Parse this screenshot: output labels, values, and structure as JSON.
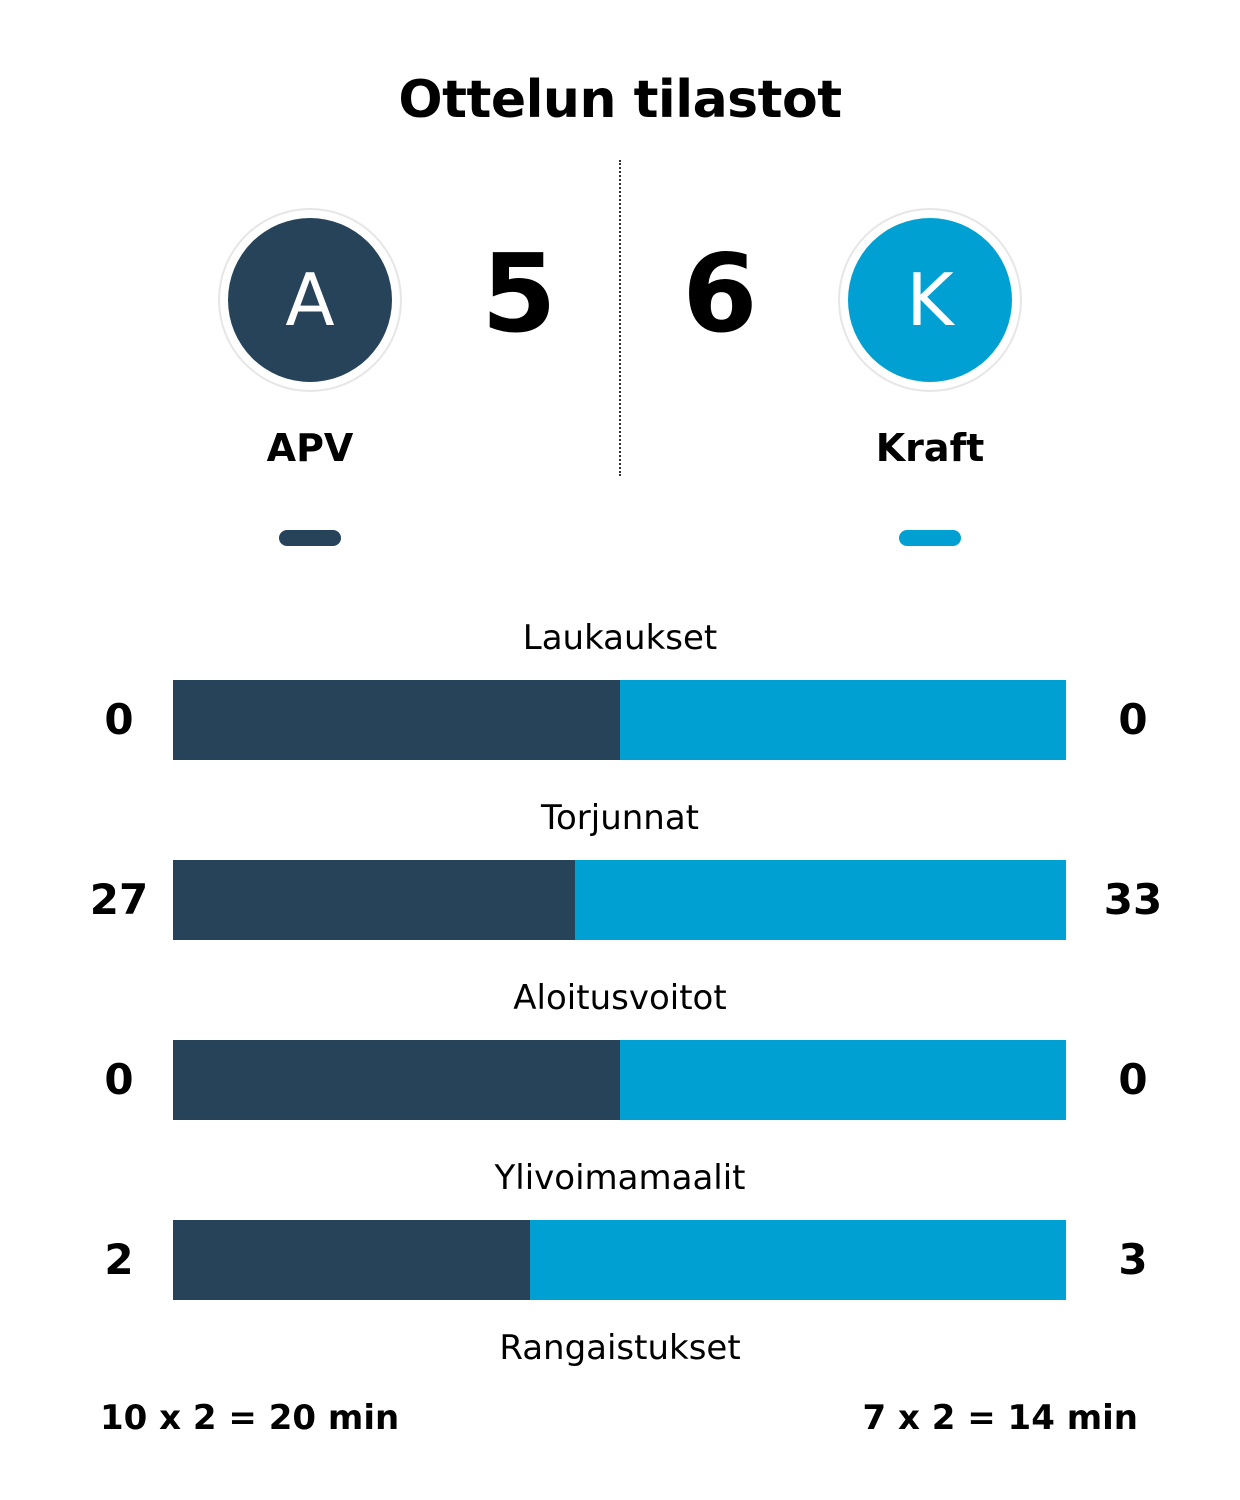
{
  "title": "Ottelun tilastot",
  "colors": {
    "home": "#26435a",
    "away": "#00a0d2"
  },
  "home": {
    "initial": "A",
    "name": "APV",
    "score": "5"
  },
  "away": {
    "initial": "K",
    "name": "Kraft",
    "score": "6"
  },
  "stats": [
    {
      "label": "Laukaukset",
      "home": "0",
      "away": "0",
      "home_share": 0.5
    },
    {
      "label": "Torjunnat",
      "home": "27",
      "away": "33",
      "home_share": 0.45
    },
    {
      "label": "Aloitusvoitot",
      "home": "0",
      "away": "0",
      "home_share": 0.5
    },
    {
      "label": "Ylivoimamaalit",
      "home": "2",
      "away": "3",
      "home_share": 0.4
    }
  ],
  "penalties": {
    "label": "Rangaistukset",
    "home": "10 x 2 = 20 min",
    "away": "7 x 2 = 14 min"
  }
}
